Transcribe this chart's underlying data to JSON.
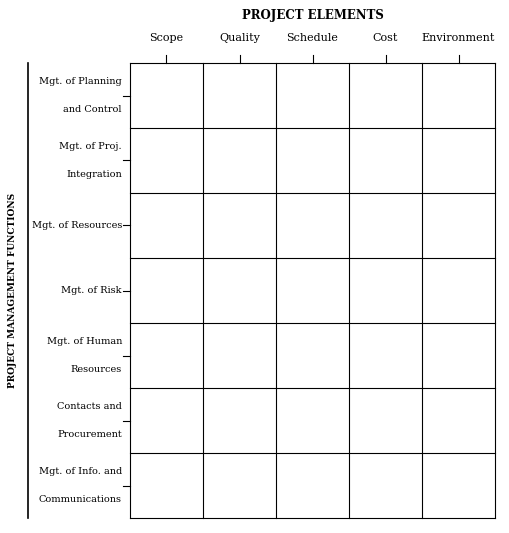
{
  "title": "PROJECT ELEMENTS",
  "col_labels": [
    "Scope",
    "Quality",
    "Schedule",
    "Cost",
    "Environment"
  ],
  "row_labels": [
    [
      "Mgt. of Planning",
      "and Control"
    ],
    [
      "Mgt. of Proj.",
      "Integration"
    ],
    [
      "Mgt. of Resources"
    ],
    [
      "Mgt. of Risk"
    ],
    [
      "Mgt. of Human",
      "Resources"
    ],
    [
      "Contacts and",
      "Procurement"
    ],
    [
      "Mgt. of Info. and",
      "Communications"
    ]
  ],
  "y_axis_label": "PROJECT MANAGEMENT FUNCTIONS",
  "n_cols": 5,
  "n_rows": 7,
  "background_color": "#ffffff",
  "grid_color": "#000000",
  "text_color": "#000000",
  "title_fontsize": 8.5,
  "col_label_fontsize": 8,
  "row_label_fontsize": 7,
  "y_axis_label_fontsize": 6.5
}
